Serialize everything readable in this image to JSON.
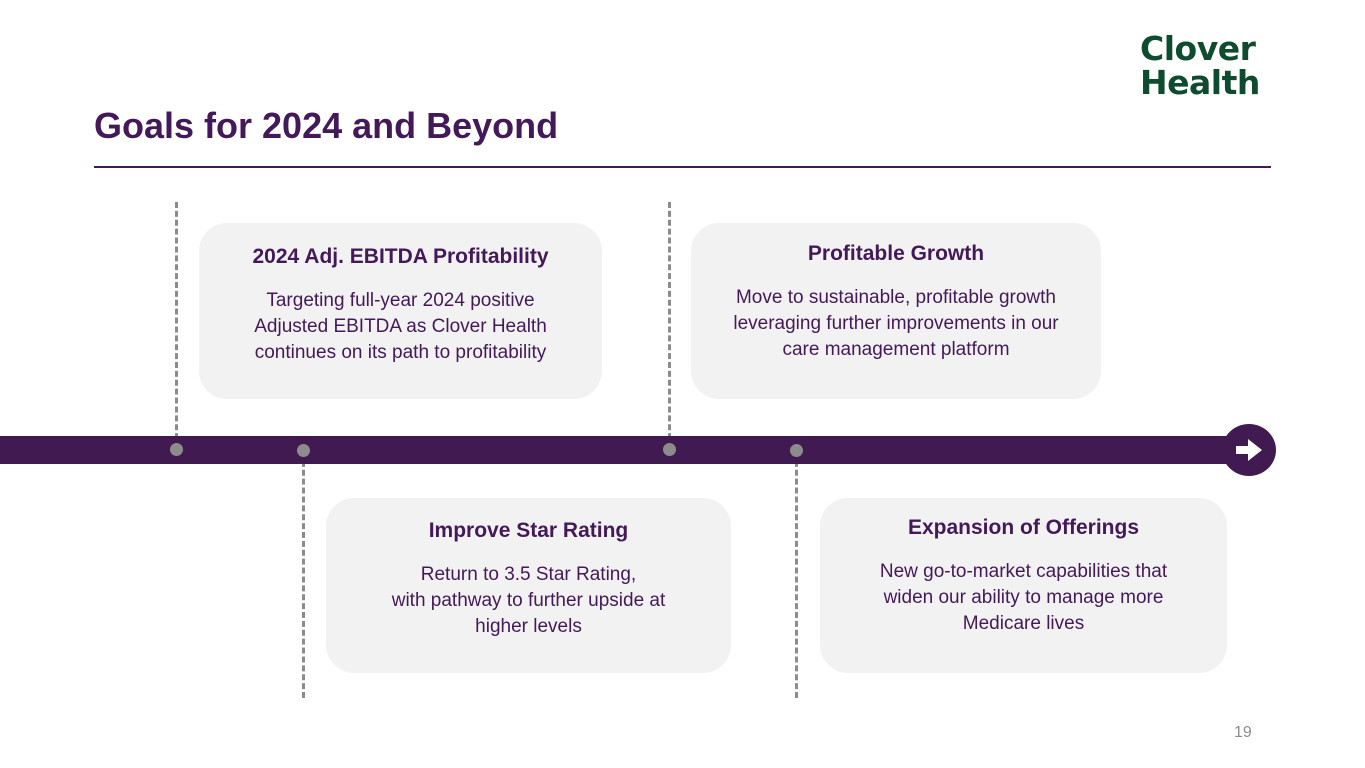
{
  "logo": {
    "line1": "Clover",
    "line2": "Health",
    "color": "#0f4b2e"
  },
  "title": "Goals for 2024 and Beyond",
  "colors": {
    "primary": "#44195a",
    "timeline": "#421a52",
    "card_background": "#f2f2f2",
    "marker": "#8c8c8c"
  },
  "cards": [
    {
      "title": "2024 Adj. EBITDA Profitability",
      "body": "Targeting full-year 2024 positive\nAdjusted EBITDA as Clover Health\ncontinues on its path to profitability"
    },
    {
      "title": "Profitable Growth",
      "body": "Move to sustainable, profitable growth\nleveraging further improvements in our\ncare management platform"
    },
    {
      "title": "Improve Star Rating",
      "body": "Return to 3.5 Star Rating,\nwith pathway to further upside at\nhigher levels"
    },
    {
      "title": "Expansion of Offerings",
      "body": "New go-to-market capabilities that\nwiden our ability to manage more\nMedicare lives"
    }
  ],
  "timeline_arrow_icon": "arrow-right-icon",
  "page_number": "19"
}
